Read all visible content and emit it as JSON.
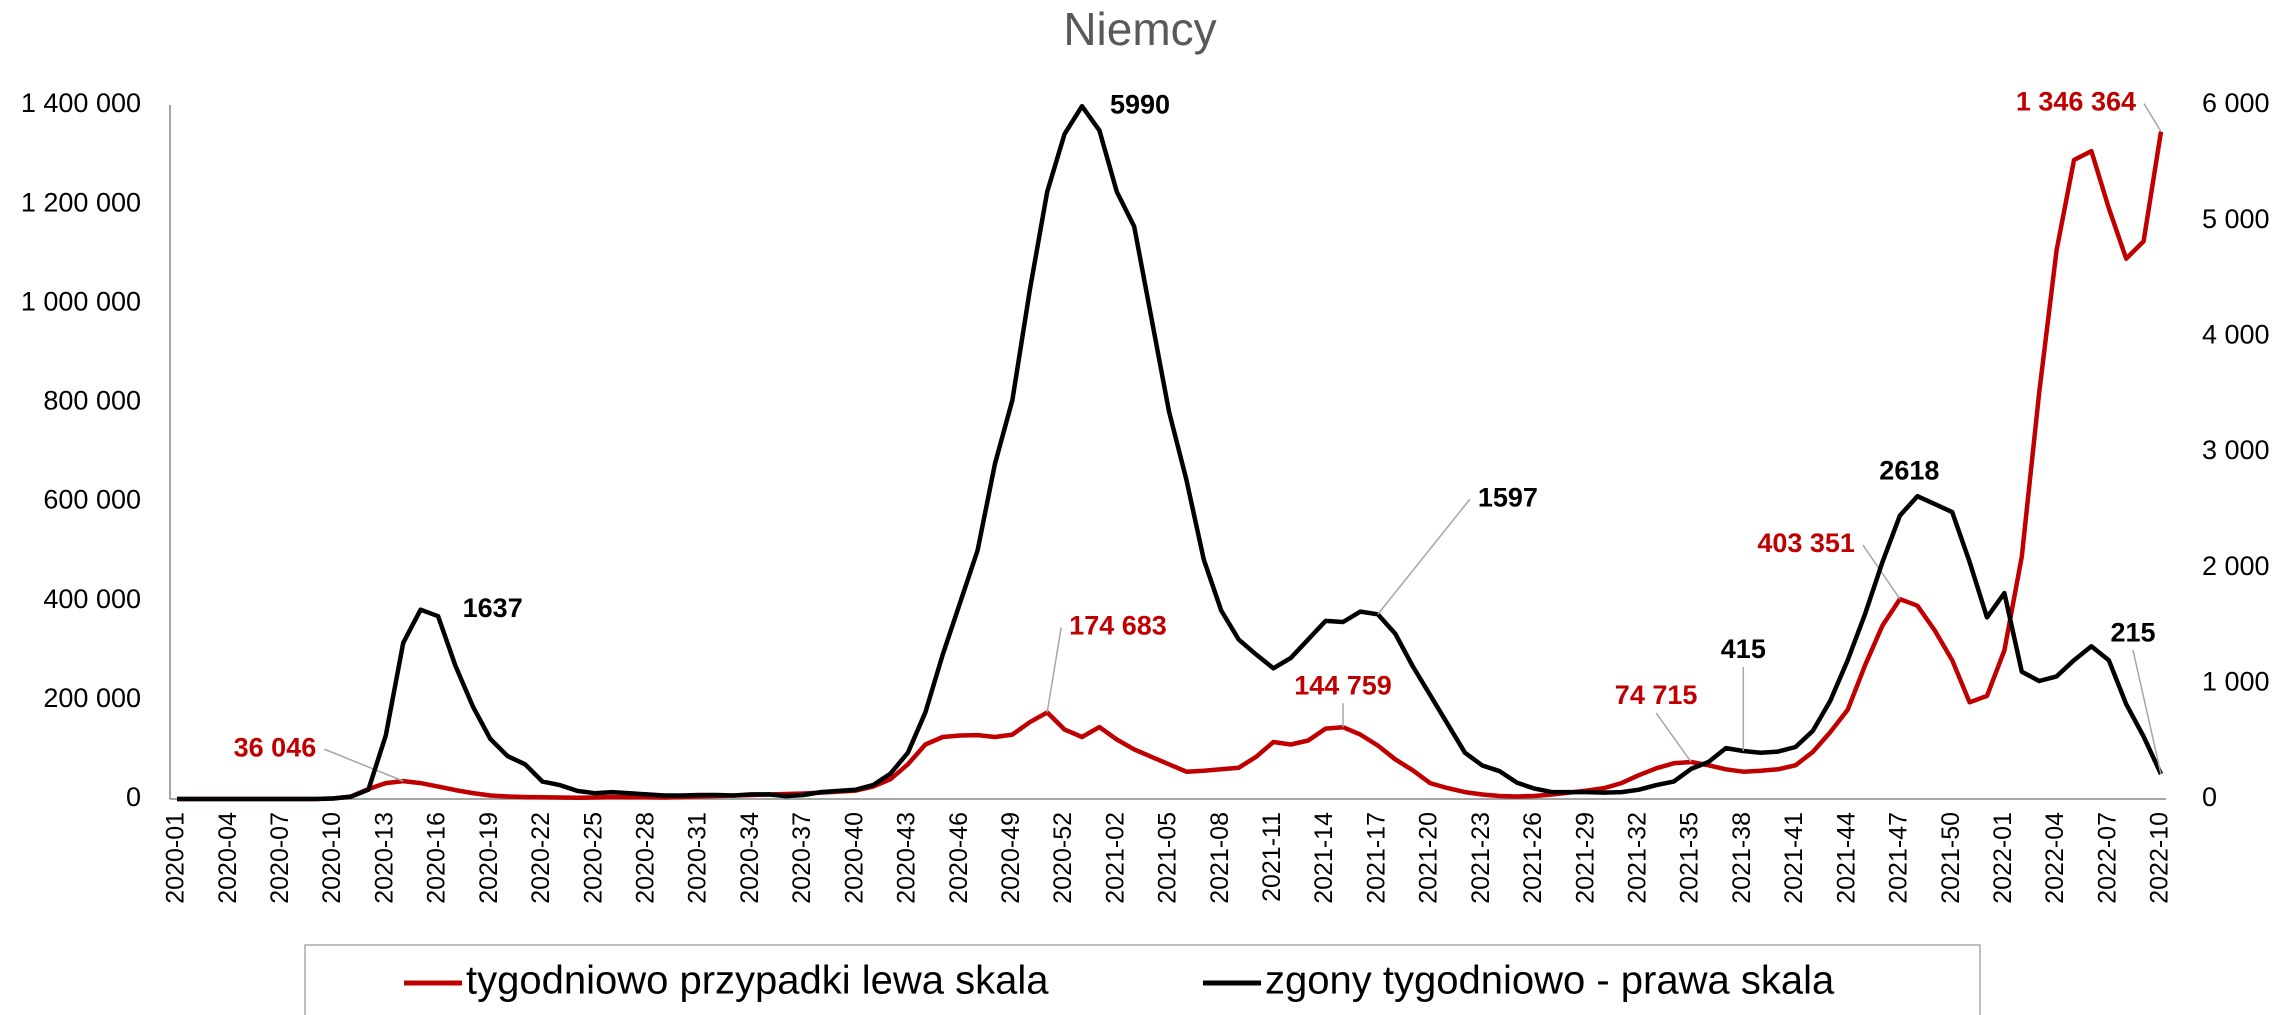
{
  "chart_data": {
    "type": "line",
    "title": "Niemcy",
    "categories": [
      "2020-01",
      null,
      null,
      "2020-04",
      null,
      null,
      "2020-07",
      null,
      null,
      "2020-10",
      null,
      null,
      "2020-13",
      null,
      null,
      "2020-16",
      null,
      null,
      "2020-19",
      null,
      null,
      "2020-22",
      null,
      null,
      "2020-25",
      null,
      null,
      "2020-28",
      null,
      null,
      "2020-31",
      null,
      null,
      "2020-34",
      null,
      null,
      "2020-37",
      null,
      null,
      "2020-40",
      null,
      null,
      "2020-43",
      null,
      null,
      "2020-46",
      null,
      null,
      "2020-49",
      null,
      null,
      "2020-52",
      null,
      null,
      "2021-02",
      null,
      null,
      "2021-05",
      null,
      null,
      "2021-08",
      null,
      null,
      "2021-11",
      null,
      null,
      "2021-14",
      null,
      null,
      "2021-17",
      null,
      null,
      "2021-20",
      null,
      null,
      "2021-23",
      null,
      null,
      "2021-26",
      null,
      null,
      "2021-29",
      null,
      null,
      "2021-32",
      null,
      null,
      "2021-35",
      null,
      null,
      "2021-38",
      null,
      null,
      "2021-41",
      null,
      null,
      "2021-44",
      null,
      null,
      "2021-47",
      null,
      null,
      "2021-50",
      null,
      null,
      "2022-01",
      null,
      null,
      "2022-04",
      null,
      null,
      "2022-07",
      null,
      null,
      "2022-10"
    ],
    "series": [
      {
        "name": "tygodniowo przypadki lewa skala",
        "color": "#c00000",
        "values": [
          0,
          0,
          0,
          0,
          0,
          0,
          0,
          0,
          0,
          1000,
          5000,
          20000,
          32000,
          36046,
          32000,
          25000,
          18000,
          12000,
          7000,
          5000,
          4000,
          3500,
          3000,
          2500,
          3000,
          4000,
          3500,
          3500,
          3000,
          4000,
          5000,
          6000,
          7000,
          8000,
          9000,
          10000,
          11000,
          13000,
          15000,
          17000,
          25000,
          40000,
          70000,
          110000,
          125000,
          128000,
          129000,
          125000,
          130000,
          155000,
          174683,
          140000,
          125000,
          145000,
          120000,
          100000,
          85000,
          70000,
          55000,
          57000,
          60000,
          63000,
          85000,
          115000,
          110000,
          118000,
          142000,
          144759,
          130000,
          108000,
          80000,
          58000,
          32000,
          22000,
          14000,
          9000,
          6000,
          5000,
          6000,
          9000,
          13000,
          17000,
          22000,
          32000,
          48000,
          62000,
          72000,
          74715,
          68000,
          60000,
          55000,
          57000,
          60000,
          68000,
          95000,
          135000,
          180000,
          270000,
          350000,
          403351,
          390000,
          340000,
          280000,
          195000,
          208000,
          300000,
          489000,
          820000,
          1107000,
          1289000,
          1307000,
          1192000,
          1090000,
          1125000,
          1346364
        ],
        "value_labels": [
          null,
          null,
          null,
          null,
          null,
          null,
          null,
          null,
          null,
          null,
          null,
          null,
          null,
          "36 046",
          null,
          null,
          null,
          null,
          null,
          null,
          null,
          null,
          null,
          null,
          null,
          null,
          null,
          null,
          null,
          null,
          null,
          null,
          null,
          null,
          null,
          null,
          null,
          null,
          null,
          null,
          null,
          null,
          null,
          null,
          null,
          null,
          null,
          null,
          null,
          null,
          "174 683",
          null,
          null,
          null,
          null,
          null,
          null,
          null,
          null,
          null,
          null,
          null,
          null,
          null,
          null,
          null,
          null,
          "144 759",
          null,
          null,
          null,
          null,
          null,
          null,
          null,
          null,
          null,
          null,
          null,
          null,
          null,
          null,
          null,
          null,
          null,
          null,
          null,
          "74 715",
          null,
          null,
          null,
          null,
          null,
          null,
          null,
          null,
          null,
          null,
          null,
          "403 351",
          null,
          null,
          null,
          null,
          null,
          null,
          null,
          null,
          null,
          null,
          null,
          null,
          null,
          null,
          "1 346 364"
        ]
      },
      {
        "name": "zgony tygodniowo - prawa skala",
        "color": "#000000",
        "axis": "y2",
        "values": [
          0,
          0,
          0,
          0,
          0,
          0,
          0,
          0,
          0,
          5,
          20,
          80,
          550,
          1350,
          1637,
          1580,
          1150,
          800,
          520,
          370,
          300,
          150,
          120,
          70,
          50,
          60,
          50,
          40,
          30,
          30,
          35,
          35,
          30,
          40,
          40,
          25,
          35,
          60,
          70,
          80,
          120,
          220,
          400,
          750,
          1250,
          1700,
          2150,
          2900,
          3450,
          4400,
          5250,
          5750,
          5990,
          5780,
          5250,
          4950,
          4150,
          3350,
          2760,
          2070,
          1630,
          1380,
          1250,
          1130,
          1220,
          1380,
          1540,
          1530,
          1620,
          1597,
          1430,
          1150,
          900,
          650,
          400,
          290,
          240,
          140,
          90,
          60,
          60,
          60,
          55,
          60,
          80,
          120,
          150,
          260,
          320,
          440,
          415,
          400,
          410,
          450,
          590,
          850,
          1200,
          1600,
          2050,
          2450,
          2618,
          2550,
          2480,
          2050,
          1570,
          1780,
          1100,
          1020,
          1060,
          1200,
          1320,
          1200,
          820,
          540,
          215
        ],
        "value_labels": [
          null,
          null,
          null,
          null,
          null,
          null,
          null,
          null,
          null,
          null,
          null,
          null,
          null,
          null,
          "1637",
          null,
          null,
          null,
          null,
          null,
          null,
          null,
          null,
          null,
          null,
          null,
          null,
          null,
          null,
          null,
          null,
          null,
          null,
          null,
          null,
          null,
          null,
          null,
          null,
          null,
          null,
          null,
          null,
          null,
          null,
          null,
          null,
          null,
          null,
          null,
          null,
          null,
          "5990",
          null,
          null,
          null,
          null,
          null,
          null,
          null,
          null,
          null,
          null,
          null,
          null,
          null,
          null,
          null,
          null,
          "1597",
          null,
          null,
          null,
          null,
          null,
          null,
          null,
          null,
          null,
          null,
          null,
          null,
          null,
          null,
          null,
          null,
          null,
          null,
          null,
          null,
          "415",
          null,
          null,
          null,
          null,
          null,
          null,
          null,
          null,
          null,
          "2618",
          null,
          null,
          null,
          null,
          null,
          null,
          null,
          null,
          null,
          null,
          null,
          null,
          null,
          "215"
        ]
      }
    ],
    "ylim": [
      0,
      1400000
    ],
    "yticks": [
      0,
      {
        "value": 200000,
        "label": "200 000"
      },
      {
        "value": 400000,
        "label": "400 000"
      },
      {
        "value": 600000,
        "label": "600 000"
      },
      {
        "value": 800000,
        "label": "800 000"
      },
      {
        "value": 1000000,
        "label": "1 000 000"
      },
      {
        "value": 1200000,
        "label": "1 200 000"
      },
      {
        "value": 1400000,
        "label": "1 400 000"
      }
    ],
    "y2lim": [
      0,
      6000
    ],
    "y2ticks": [
      0,
      {
        "value": 1000,
        "label": "1 000"
      },
      {
        "value": 2000,
        "label": "2 000"
      },
      {
        "value": 3000,
        "label": "3 000"
      },
      {
        "value": 4000,
        "label": "4 000"
      },
      {
        "value": 5000,
        "label": "5 000"
      },
      {
        "value": 6000,
        "label": "6 000"
      }
    ],
    "legend": "bottom"
  }
}
